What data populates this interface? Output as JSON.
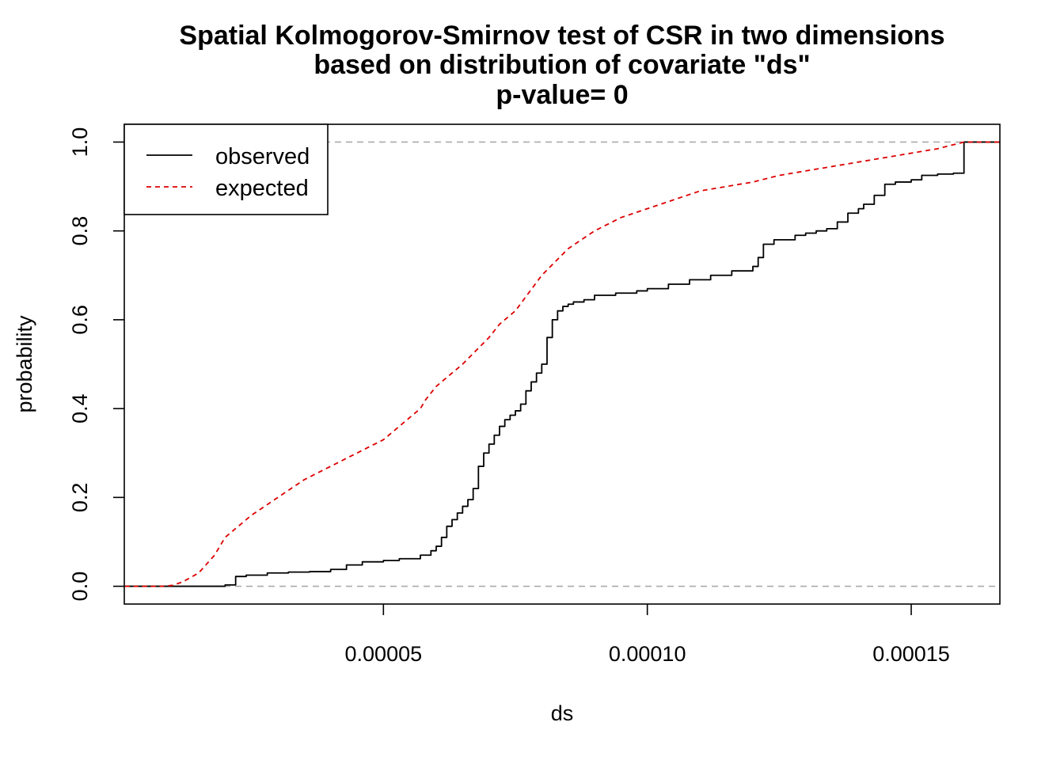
{
  "chart_data": {
    "type": "line",
    "title_lines": [
      "Spatial Kolmogorov-Smirnov test of CSR in two dimensions",
      "based on distribution of covariate \"ds\"",
      "p-value= 0"
    ],
    "xlabel": "ds",
    "ylabel": "probability",
    "xlim": [
      9e-07,
      0.0001668
    ],
    "ylim": [
      -0.04,
      1.04
    ],
    "x_ticks": [
      5e-05,
      0.0001,
      0.00015
    ],
    "x_tick_labels": [
      "0.00005",
      "0.00010",
      "0.00015"
    ],
    "y_ticks": [
      0.0,
      0.2,
      0.4,
      0.6,
      0.8,
      1.0
    ],
    "y_tick_labels": [
      "0.0",
      "0.2",
      "0.4",
      "0.6",
      "0.8",
      "1.0"
    ],
    "reference_lines": [
      0,
      1
    ],
    "legend_position": "top-left",
    "colors": {
      "observed": "#000000",
      "expected": "#dd0000",
      "reference": "#aaaaaa"
    },
    "series": [
      {
        "name": "observed",
        "style": "solid-step",
        "x": [
          1e-06,
          2e-05,
          2.2e-05,
          2.4e-05,
          2.8e-05,
          3.2e-05,
          3.6e-05,
          4e-05,
          4.3e-05,
          4.6e-05,
          5e-05,
          5.3e-05,
          5.7e-05,
          5.9e-05,
          6e-05,
          6.1e-05,
          6.2e-05,
          6.3e-05,
          6.4e-05,
          6.5e-05,
          6.6e-05,
          6.7e-05,
          6.8e-05,
          6.9e-05,
          7e-05,
          7.1e-05,
          7.2e-05,
          7.3e-05,
          7.4e-05,
          7.5e-05,
          7.6e-05,
          7.7e-05,
          7.8e-05,
          7.9e-05,
          8e-05,
          8.1e-05,
          8.2e-05,
          8.3e-05,
          8.4e-05,
          8.5e-05,
          8.6e-05,
          8.8e-05,
          9e-05,
          9.4e-05,
          9.8e-05,
          0.0001,
          0.000104,
          0.000108,
          0.000112,
          0.000116,
          0.00012,
          0.000121,
          0.000122,
          0.000124,
          0.000128,
          0.00013,
          0.000132,
          0.000134,
          0.000136,
          0.000138,
          0.00014,
          0.000141,
          0.000143,
          0.000145,
          0.000147,
          0.00015,
          0.000152,
          0.000155,
          0.000158,
          0.00016,
          0.0001668
        ],
        "y": [
          0.0,
          0.003,
          0.022,
          0.025,
          0.03,
          0.032,
          0.033,
          0.038,
          0.048,
          0.055,
          0.058,
          0.062,
          0.07,
          0.08,
          0.09,
          0.11,
          0.135,
          0.15,
          0.165,
          0.18,
          0.195,
          0.22,
          0.27,
          0.3,
          0.32,
          0.34,
          0.36,
          0.375,
          0.385,
          0.395,
          0.41,
          0.44,
          0.46,
          0.48,
          0.5,
          0.56,
          0.6,
          0.62,
          0.63,
          0.635,
          0.64,
          0.645,
          0.655,
          0.66,
          0.665,
          0.67,
          0.68,
          0.69,
          0.7,
          0.71,
          0.72,
          0.74,
          0.77,
          0.78,
          0.79,
          0.795,
          0.8,
          0.805,
          0.82,
          0.84,
          0.85,
          0.86,
          0.88,
          0.905,
          0.91,
          0.915,
          0.925,
          0.928,
          0.93,
          1.0,
          1.0
        ]
      },
      {
        "name": "expected",
        "style": "dashed",
        "x": [
          1e-06,
          8e-06,
          1e-05,
          1.2e-05,
          1.5e-05,
          1.8e-05,
          2e-05,
          2.2e-05,
          2.5e-05,
          3e-05,
          3.5e-05,
          4e-05,
          4.5e-05,
          5e-05,
          5.5e-05,
          5.7e-05,
          5.8e-05,
          6e-05,
          6.5e-05,
          7e-05,
          7.2e-05,
          7.5e-05,
          8e-05,
          8.5e-05,
          9e-05,
          9.5e-05,
          0.0001,
          0.000105,
          0.00011,
          0.000115,
          0.00012,
          0.000125,
          0.00013,
          0.000135,
          0.00014,
          0.000145,
          0.00015,
          0.000155,
          0.00016,
          0.0001668
        ],
        "y": [
          0.0,
          0.0,
          0.002,
          0.01,
          0.03,
          0.07,
          0.11,
          0.13,
          0.16,
          0.2,
          0.24,
          0.27,
          0.3,
          0.33,
          0.38,
          0.4,
          0.42,
          0.45,
          0.5,
          0.56,
          0.59,
          0.62,
          0.7,
          0.76,
          0.8,
          0.83,
          0.85,
          0.87,
          0.89,
          0.9,
          0.91,
          0.925,
          0.935,
          0.945,
          0.955,
          0.965,
          0.975,
          0.985,
          1.0,
          1.0
        ]
      }
    ]
  }
}
